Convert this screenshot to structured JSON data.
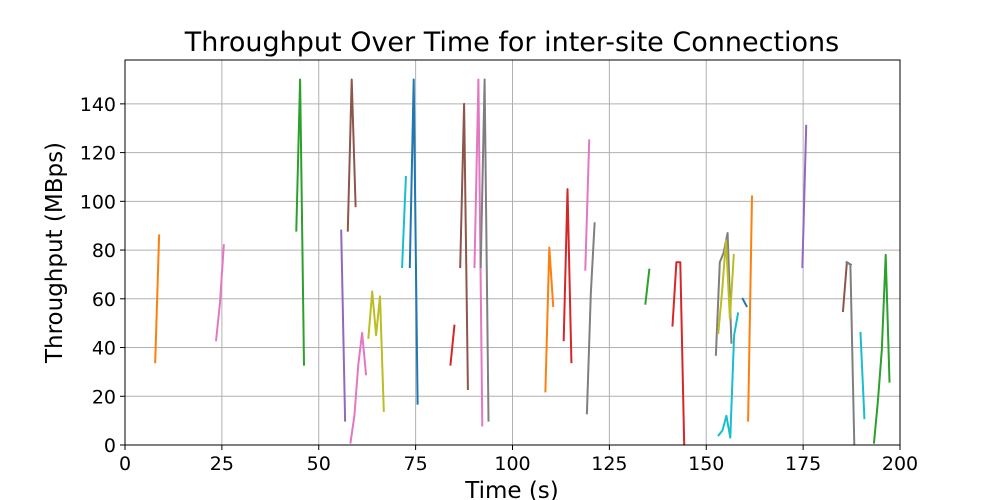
{
  "chart_data": {
    "type": "line",
    "title": "Throughput Over Time for inter-site Connections",
    "xlabel": "Time (s)",
    "ylabel": "Throughput (MBps)",
    "xlim": [
      0,
      200
    ],
    "ylim": [
      0,
      158
    ],
    "x_ticks": [
      0,
      25,
      50,
      75,
      100,
      125,
      150,
      175,
      200
    ],
    "y_ticks": [
      0,
      20,
      40,
      60,
      80,
      100,
      120,
      140
    ],
    "grid": true,
    "legend": "none",
    "palette": [
      "#1f77b4",
      "#ff7f0e",
      "#2ca02c",
      "#d62728",
      "#9467bd",
      "#8c564b",
      "#e377c2",
      "#7f7f7f",
      "#bcbd22",
      "#17becf"
    ],
    "series": [
      {
        "color": "#ff7f0e",
        "x": [
          7.8,
          8.8
        ],
        "y": [
          34,
          86
        ]
      },
      {
        "color": "#e377c2",
        "x": [
          23.5,
          24.5,
          25.5
        ],
        "y": [
          43,
          58,
          82
        ]
      },
      {
        "color": "#2ca02c",
        "x": [
          44.2,
          45.2,
          46.2
        ],
        "y": [
          88,
          150,
          33
        ]
      },
      {
        "color": "#9467bd",
        "x": [
          55.8,
          56.8
        ],
        "y": [
          88,
          10
        ]
      },
      {
        "color": "#8c564b",
        "x": [
          57.5,
          58.5,
          59.5
        ],
        "y": [
          88,
          150,
          98
        ]
      },
      {
        "color": "#e377c2",
        "x": [
          58.2,
          59.2,
          60.2,
          61.2,
          62.2
        ],
        "y": [
          1,
          12,
          33,
          46,
          29
        ]
      },
      {
        "color": "#bcbd22",
        "x": [
          62.8,
          63.8,
          64.8,
          65.8,
          66.8
        ],
        "y": [
          44,
          63,
          45,
          61,
          14
        ]
      },
      {
        "color": "#17becf",
        "x": [
          71.5,
          72.5
        ],
        "y": [
          73,
          110
        ]
      },
      {
        "color": "#1f77b4",
        "x": [
          73.5,
          74.5,
          75.5
        ],
        "y": [
          73,
          150,
          17
        ]
      },
      {
        "color": "#d62728",
        "x": [
          84,
          85
        ],
        "y": [
          33,
          49
        ]
      },
      {
        "color": "#8c564b",
        "x": [
          86.5,
          87.5,
          88.5
        ],
        "y": [
          73,
          140,
          23
        ]
      },
      {
        "color": "#e377c2",
        "x": [
          90.2,
          91.2,
          92.2
        ],
        "y": [
          73,
          150,
          8
        ]
      },
      {
        "color": "#7f7f7f",
        "x": [
          91.8,
          92.8,
          93.8
        ],
        "y": [
          73,
          150,
          10
        ]
      },
      {
        "color": "#ff7f0e",
        "x": [
          108.5,
          109.5,
          110.5
        ],
        "y": [
          22,
          81,
          57
        ]
      },
      {
        "color": "#d62728",
        "x": [
          113.2,
          114.2,
          115.2
        ],
        "y": [
          43,
          105,
          34
        ]
      },
      {
        "color": "#e377c2",
        "x": [
          118.8,
          119.8
        ],
        "y": [
          72,
          125
        ]
      },
      {
        "color": "#7f7f7f",
        "x": [
          119.2,
          120.2,
          121.2
        ],
        "y": [
          13,
          62,
          91
        ]
      },
      {
        "color": "#2ca02c",
        "x": [
          134.3,
          135.3
        ],
        "y": [
          58,
          72
        ]
      },
      {
        "color": "#d62728",
        "x": [
          141.3,
          142.3,
          143.3,
          144.3
        ],
        "y": [
          49,
          75,
          75,
          0
        ]
      },
      {
        "color": "#7f7f7f",
        "x": [
          152.5,
          153.5,
          154.5,
          155.5,
          156.5
        ],
        "y": [
          37,
          75,
          79,
          87,
          42
        ]
      },
      {
        "color": "#bcbd22",
        "x": [
          153.1,
          154.1,
          155.1,
          156.1,
          157.1
        ],
        "y": [
          46,
          63,
          84,
          52,
          78
        ]
      },
      {
        "color": "#17becf",
        "x": [
          153.2,
          154.2,
          155.2,
          156.2,
          157.2,
          158.2
        ],
        "y": [
          4,
          6,
          12,
          3,
          45,
          54
        ]
      },
      {
        "color": "#1f77b4",
        "x": [
          159.4,
          160.4
        ],
        "y": [
          60,
          57
        ]
      },
      {
        "color": "#ff7f0e",
        "x": [
          160.8,
          161.8
        ],
        "y": [
          10,
          102
        ]
      },
      {
        "color": "#9467bd",
        "x": [
          174.8,
          175.8
        ],
        "y": [
          73,
          131
        ]
      },
      {
        "color": "#8c564b",
        "x": [
          185.3,
          186.3,
          187.3
        ],
        "y": [
          55,
          75,
          74
        ]
      },
      {
        "color": "#7f7f7f",
        "x": [
          186.2,
          187.2,
          188.2
        ],
        "y": [
          75,
          74,
          0
        ]
      },
      {
        "color": "#17becf",
        "x": [
          189.8,
          190.8
        ],
        "y": [
          46,
          11
        ]
      },
      {
        "color": "#2ca02c",
        "x": [
          193.3,
          194.3,
          195.3,
          196.3,
          197.3
        ],
        "y": [
          1,
          18,
          39,
          78,
          26
        ]
      }
    ]
  }
}
